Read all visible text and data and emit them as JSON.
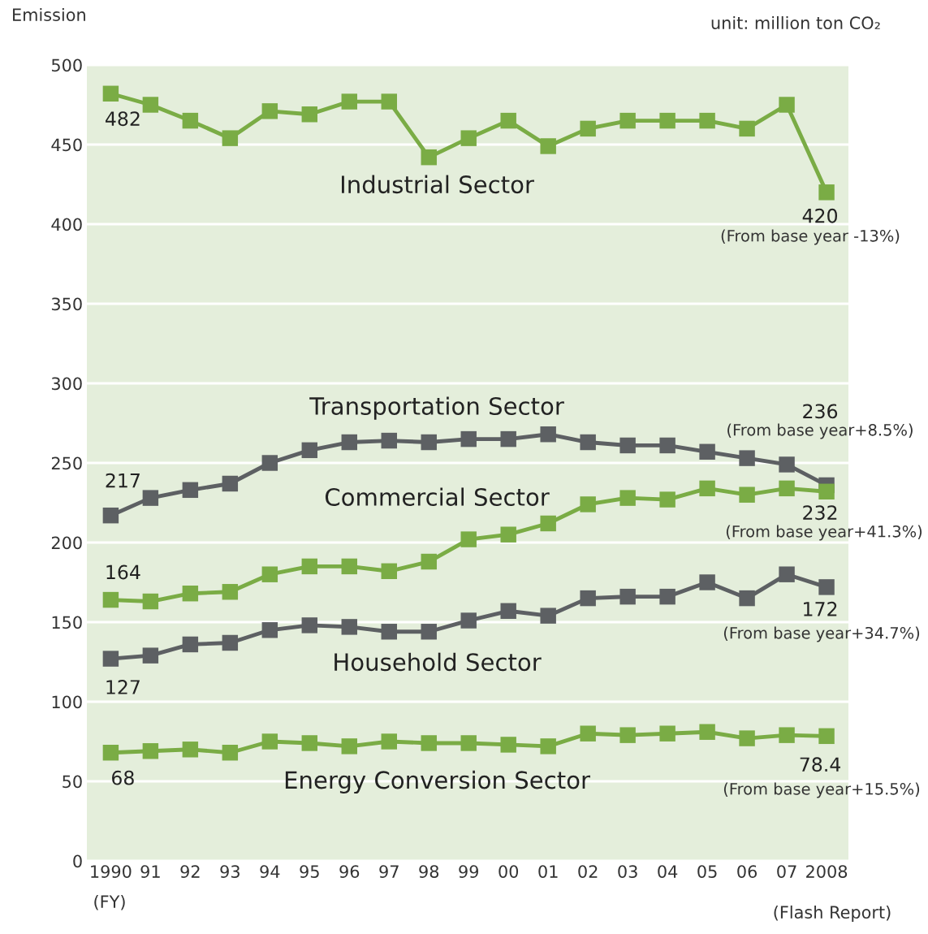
{
  "chart_data": {
    "type": "line",
    "ylabel": "Emission",
    "xlabel": "(FY)",
    "categories": [
      "1990",
      "91",
      "92",
      "93",
      "94",
      "95",
      "96",
      "97",
      "98",
      "99",
      "00",
      "01",
      "02",
      "03",
      "04",
      "05",
      "06",
      "07",
      "2008"
    ],
    "series": [
      {
        "name": "Industrial Sector",
        "color": "#7aac45",
        "values": [
          482,
          475,
          465,
          454,
          471,
          469,
          477,
          477,
          442,
          454,
          465,
          449,
          460,
          465,
          465,
          465,
          460,
          475,
          420
        ],
        "value_labels": [
          "482",
          null,
          null,
          null,
          null,
          null,
          null,
          null,
          null,
          null,
          null,
          null,
          null,
          null,
          null,
          null,
          null,
          null,
          "420"
        ]
      },
      {
        "name": "Transportation Sector",
        "color": "#5d6063",
        "values": [
          217,
          228,
          233,
          237,
          250,
          258,
          263,
          264,
          263,
          265,
          265,
          268,
          263,
          261,
          261,
          257,
          253,
          249,
          236
        ],
        "value_labels": [
          "217",
          null,
          null,
          null,
          null,
          null,
          null,
          null,
          null,
          null,
          null,
          null,
          null,
          null,
          null,
          null,
          null,
          null,
          "236"
        ]
      },
      {
        "name": "Commercial Sector",
        "color": "#7aac45",
        "values": [
          164,
          163,
          168,
          169,
          180,
          185,
          185,
          182,
          188,
          202,
          205,
          212,
          224,
          228,
          227,
          234,
          230,
          234,
          232
        ],
        "value_labels": [
          "164",
          null,
          null,
          null,
          null,
          null,
          null,
          null,
          null,
          null,
          null,
          null,
          null,
          null,
          null,
          null,
          null,
          null,
          "232"
        ]
      },
      {
        "name": "Household Sector",
        "color": "#5d6063",
        "values": [
          127,
          129,
          136,
          137,
          145,
          148,
          147,
          144,
          144,
          151,
          157,
          154,
          165,
          166,
          166,
          175,
          165,
          180,
          172
        ],
        "value_labels": [
          "127",
          null,
          null,
          null,
          null,
          null,
          null,
          null,
          null,
          null,
          null,
          null,
          null,
          null,
          null,
          null,
          null,
          null,
          "172"
        ]
      },
      {
        "name": "Energy Conversion Sector",
        "color": "#7aac45",
        "values": [
          68,
          69,
          70,
          68,
          75,
          74,
          72,
          75,
          74,
          74,
          73,
          72,
          80,
          79,
          80,
          81,
          77,
          79,
          78.4
        ],
        "value_labels": [
          "68",
          null,
          null,
          null,
          null,
          null,
          null,
          null,
          null,
          null,
          null,
          null,
          null,
          null,
          null,
          null,
          null,
          null,
          "78.4"
        ]
      }
    ],
    "ylim": [
      0,
      500
    ],
    "yticks": [
      0,
      50,
      100,
      150,
      200,
      250,
      300,
      350,
      400,
      450,
      500
    ],
    "grid": "y",
    "legend": false,
    "marker": "square",
    "line_style": "solid",
    "annotations": [
      "unit: million ton CO₂",
      "(Flash Report)",
      "(From base year -13%)",
      "(From base year+8.5%)",
      "(From base year+41.3%)",
      "(From base year+34.7%)",
      "(From base year+15.5%)"
    ]
  }
}
